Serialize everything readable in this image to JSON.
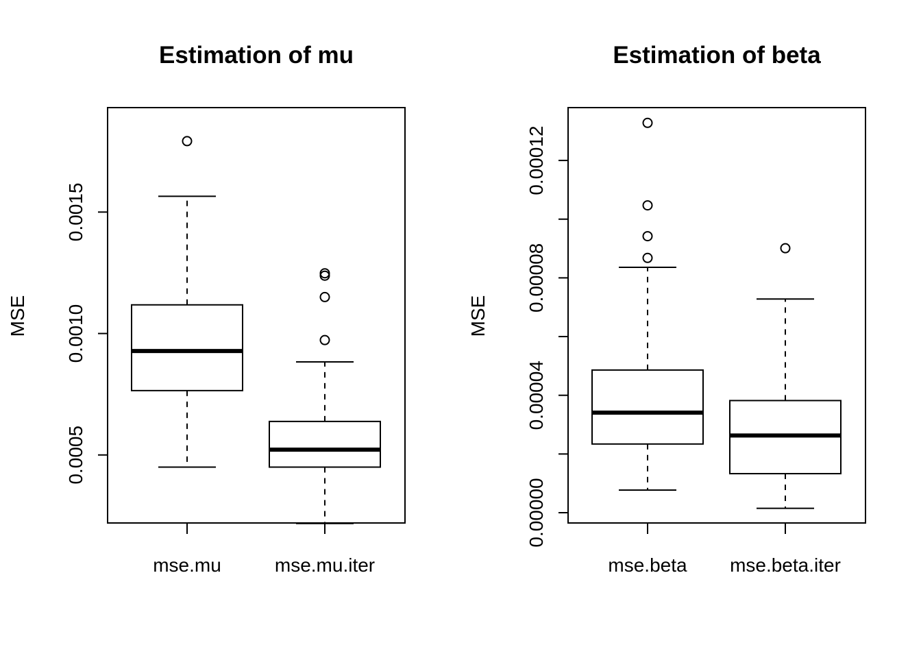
{
  "chart_data": [
    {
      "type": "box",
      "title": "Estimation of mu",
      "xlabel": "",
      "ylabel": "MSE",
      "ylim": [
        0.00022,
        0.00193
      ],
      "yticks": [
        0.0005,
        0.001,
        0.0015
      ],
      "ytick_labels": [
        "0.0005",
        "0.0010",
        "0.0015"
      ],
      "categories": [
        "mse.mu",
        "mse.mu.iter"
      ],
      "boxes": [
        {
          "whisker_low": 0.00045,
          "q1": 0.000765,
          "median": 0.000928,
          "q3": 0.001118,
          "whisker_high": 0.001565,
          "outliers": [
            0.001792
          ]
        },
        {
          "whisker_low": 0.000218,
          "q1": 0.00045,
          "median": 0.000522,
          "q3": 0.000638,
          "whisker_high": 0.000883,
          "outliers": [
            0.000973,
            0.00115,
            0.001238,
            0.001248
          ]
        }
      ]
    },
    {
      "type": "box",
      "title": "Estimation of beta",
      "xlabel": "",
      "ylabel": "MSE",
      "ylim": [
        -3.5e-06,
        0.000138
      ],
      "yticks": [
        0.0,
        2e-05,
        4e-05,
        6e-05,
        8e-05,
        0.0001,
        0.00012
      ],
      "ytick_labels": [
        "0.00000",
        "",
        "0.00004",
        "",
        "0.00008",
        "",
        "0.00012"
      ],
      "categories": [
        "mse.beta",
        "mse.beta.iter"
      ],
      "boxes": [
        {
          "whisker_low": 7.7e-06,
          "q1": 2.34e-05,
          "median": 3.41e-05,
          "q3": 4.86e-05,
          "whisker_high": 8.36e-05,
          "outliers": [
            8.68e-05,
            9.42e-05,
            0.0001047,
            0.0001328
          ]
        },
        {
          "whisker_low": 1.5e-06,
          "q1": 1.33e-05,
          "median": 2.63e-05,
          "q3": 3.82e-05,
          "whisker_high": 7.28e-05,
          "outliers": [
            9.01e-05
          ]
        }
      ]
    }
  ]
}
